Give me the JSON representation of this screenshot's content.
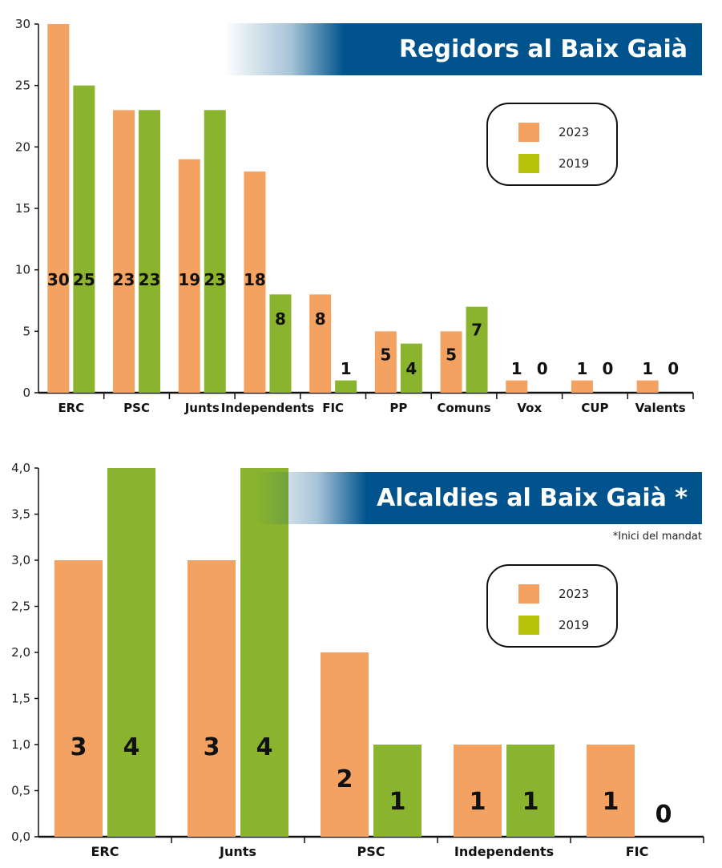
{
  "colors": {
    "c2023": "#f4a261",
    "c2019": "#8ab42d",
    "banner": "#00538c",
    "legend_2019_swatch": "#b5c40b"
  },
  "legend": {
    "label_2023": "2023",
    "label_2019": "2019"
  },
  "chart_data": [
    {
      "type": "bar",
      "title": "Regidors al Baix Gaià",
      "categories": [
        "ERC",
        "PSC",
        "Junts",
        "Independents",
        "FIC",
        "PP",
        "Comuns",
        "Vox",
        "CUP",
        "Valents"
      ],
      "series": [
        {
          "name": "2023",
          "values": [
            30,
            23,
            19,
            18,
            8,
            5,
            5,
            1,
            1,
            1
          ]
        },
        {
          "name": "2019",
          "values": [
            25,
            23,
            23,
            8,
            1,
            4,
            7,
            0,
            0,
            0
          ]
        }
      ],
      "yticks": [
        "0",
        "5",
        "10",
        "15",
        "20",
        "25",
        "30"
      ],
      "ylim": [
        0,
        30
      ],
      "legend_position": "top-right"
    },
    {
      "type": "bar",
      "title": "Alcaldies al Baix Gaià *",
      "note": "*Inici del mandat",
      "categories": [
        "ERC",
        "Junts",
        "PSC",
        "Independents",
        "FIC"
      ],
      "series": [
        {
          "name": "2023",
          "values": [
            3,
            3,
            2,
            1,
            1
          ]
        },
        {
          "name": "2019",
          "values": [
            4,
            4,
            1,
            1,
            0
          ]
        }
      ],
      "yticks": [
        "0,0",
        "0,5",
        "1,0",
        "1,5",
        "2,0",
        "2,5",
        "3,0",
        "3,5",
        "4,0"
      ],
      "ylim": [
        0,
        4
      ],
      "legend_position": "top-right"
    }
  ]
}
